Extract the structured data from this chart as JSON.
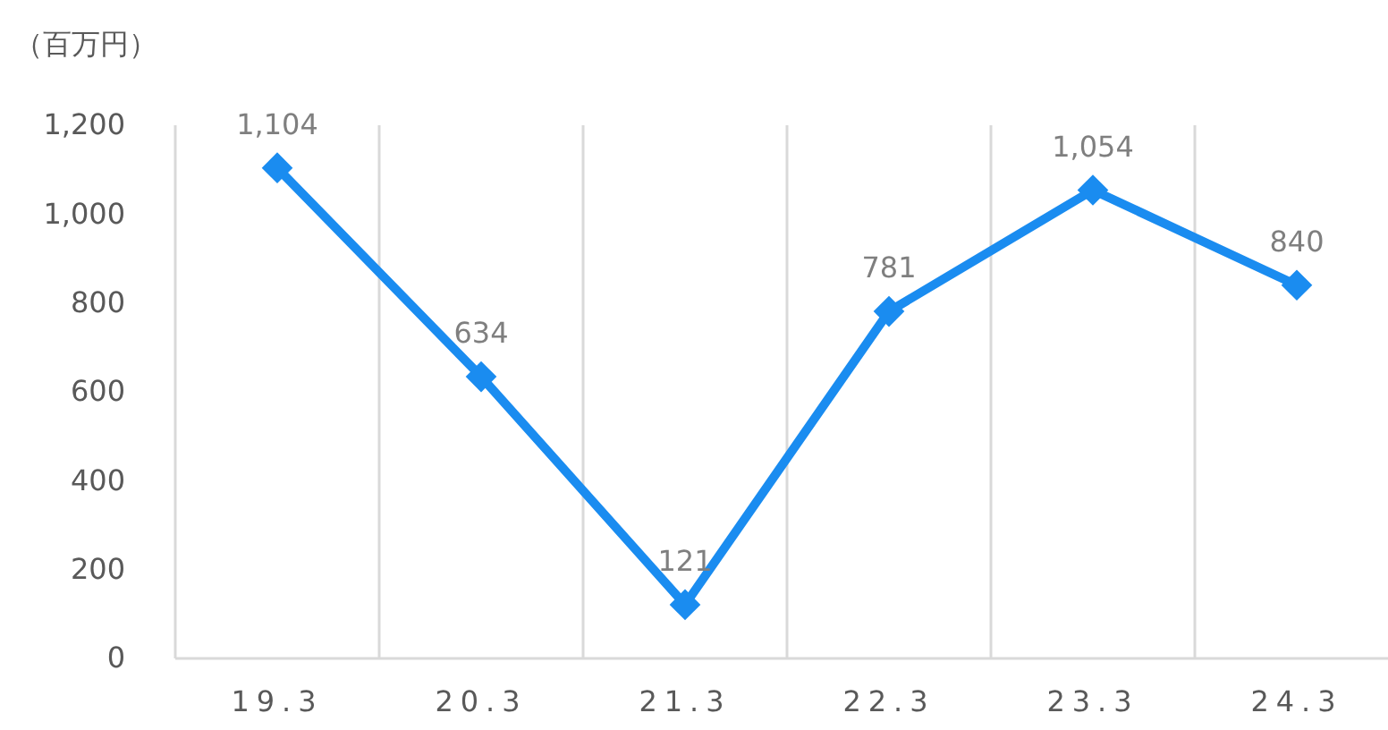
{
  "chart_data": {
    "type": "line",
    "ylabel": "（百万円）",
    "categories": [
      "19.3",
      "20.3",
      "21.3",
      "22.3",
      "23.3",
      "24.3"
    ],
    "series": [
      {
        "color": "#1a8cf0",
        "values": [
          1104,
          634,
          121,
          781,
          1054,
          840
        ],
        "value_labels": [
          "1,104",
          "634",
          "121",
          "781",
          "1,054",
          "840"
        ]
      }
    ],
    "ylim": [
      0,
      1200
    ],
    "yticks": [
      0,
      {
        "value": 200,
        "label": "200"
      },
      {
        "value": 400,
        "label": "400"
      },
      {
        "value": 600,
        "label": "600"
      },
      {
        "value": 800,
        "label": "800"
      },
      {
        "value": 1000,
        "label": "1,000"
      },
      {
        "value": 1200,
        "label": "1,200"
      }
    ],
    "grid": "x",
    "marker": "diamond"
  }
}
